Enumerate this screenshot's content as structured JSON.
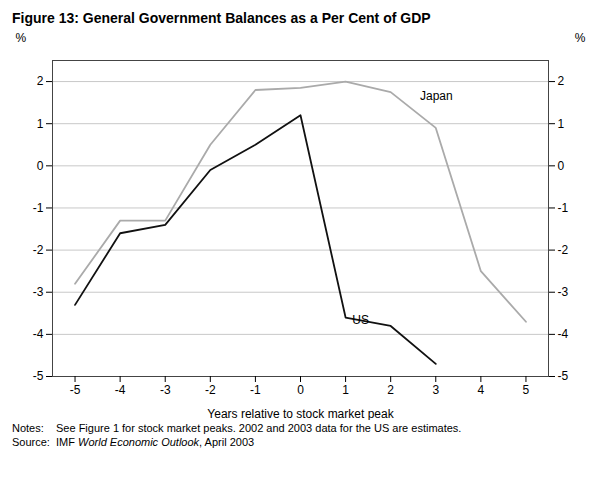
{
  "chart_data": {
    "type": "line",
    "title": "Figure 13: General Government Balances as a Per Cent of GDP",
    "x_label": "Years relative to stock market peak",
    "y_label": "%",
    "y2_label": "%",
    "x": [
      -5,
      -4,
      -3,
      -2,
      -1,
      0,
      1,
      2,
      3,
      4,
      5
    ],
    "series": [
      {
        "name": "Japan",
        "color": "#aaaaaa",
        "values": [
          -2.8,
          -1.3,
          -1.3,
          0.5,
          1.8,
          1.85,
          2.0,
          1.75,
          0.9,
          -2.5,
          -3.7
        ]
      },
      {
        "name": "US",
        "color": "#111111",
        "values": [
          -3.3,
          -1.6,
          -1.4,
          -0.1,
          0.5,
          1.2,
          -3.6,
          -3.8,
          -4.7,
          null,
          null
        ]
      }
    ],
    "xlim": [
      -5.5,
      5.5
    ],
    "xticks": [
      -5,
      -4,
      -3,
      -2,
      -1,
      0,
      1,
      2,
      3,
      4,
      5
    ],
    "ylim": [
      -5,
      2.5
    ],
    "yticks": [
      -5,
      -4,
      -3,
      -2,
      -1,
      0,
      1,
      2
    ],
    "grid": true,
    "annotations": [
      {
        "text": "US",
        "x": 1.15,
        "y": -3.55
      },
      {
        "text": "Japan",
        "x": 2.65,
        "y": 1.65
      }
    ],
    "notes": "Notes:    See Figure 1 for stock market peaks. 2002 and 2003 data for the US are estimates.",
    "source": [
      "Source:  IMF ",
      "World Economic Outlook",
      ", April 2003"
    ]
  }
}
